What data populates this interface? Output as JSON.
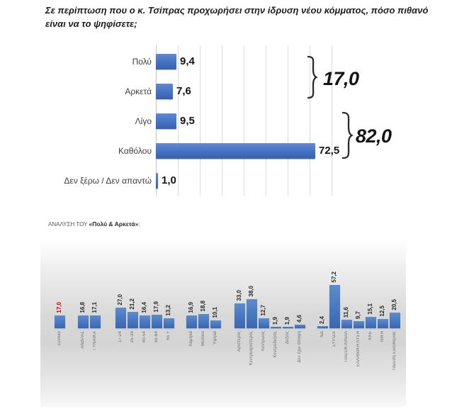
{
  "title": "Σε περίπτωση που ο κ. Τσίπρας προχωρήσει στην ίδρυση νέου κόμματος, πόσο πιθανό είναι να το ψηφίσετε;",
  "analysis_label": {
    "prefix": "ΑΝΑΛΥΣΗ ΤΟΥ ",
    "highlight": "«Πολύ & Αρκετά»",
    "suffix": ":"
  },
  "colors": {
    "bar_blue": "#4472c4",
    "highlight_red": "#c00000",
    "gridline": "#dcdcdc",
    "panel_gray": "#d9d9d9"
  },
  "chart_data": [
    {
      "type": "bar",
      "orientation": "horizontal",
      "title": "Σε περίπτωση που ο κ. Τσίπρας προχωρήσει στην ίδρυση νέου κόμματος, πόσο πιθανό είναι να το ψηφίσετε;",
      "categories": [
        "Πολύ",
        "Αρκετά",
        "Λίγο",
        "Καθόλου",
        "Δεν ξέρω / Δεν απαντώ"
      ],
      "values": [
        9.4,
        7.6,
        9.5,
        72.5,
        1.0
      ],
      "value_labels": [
        "9,4",
        "7,6",
        "9,5",
        "72,5",
        "1,0"
      ],
      "xlim": [
        0,
        80
      ],
      "gridline_interval": 10,
      "grid": true,
      "annotations": [
        {
          "type": "brace",
          "label": "17,0",
          "value": 17.0,
          "covers": [
            "Πολύ",
            "Αρκετά"
          ]
        },
        {
          "type": "brace",
          "label": "82,0",
          "value": 82.0,
          "covers": [
            "Λίγο",
            "Καθόλου"
          ]
        }
      ]
    },
    {
      "type": "bar",
      "orientation": "vertical",
      "title": "ΑΝΑΛΥΣΗ ΤΟΥ «Πολύ & Αρκετά»",
      "ylim": [
        0,
        60
      ],
      "grid": false,
      "groups": [
        {
          "name": "synolo",
          "bars": [
            {
              "label": "Σύνολο",
              "value": 17.0,
              "value_label": "17,0",
              "highlight": true
            }
          ]
        },
        {
          "name": "fylo",
          "bars": [
            {
              "label": "ΑΝΔΡΑΣ",
              "value": 16.8,
              "value_label": "16,8"
            },
            {
              "label": "ΓΥΝΑΙΚΑ",
              "value": 17.1,
              "value_label": "17,1"
            }
          ]
        },
        {
          "name": "ilikia",
          "bars": [
            {
              "label": "17-24",
              "value": 27.0,
              "value_label": "27,0"
            },
            {
              "label": "25-39",
              "value": 21.2,
              "value_label": "21,2"
            },
            {
              "label": "40-54",
              "value": 16.4,
              "value_label": "16,4"
            },
            {
              "label": "55-64",
              "value": 17.9,
              "value_label": "17,9"
            },
            {
              "label": "65 +",
              "value": 13.2,
              "value_label": "13,2"
            }
          ]
        },
        {
          "name": "eisodima",
          "bars": [
            {
              "label": "Χαμηλά",
              "value": 16.9,
              "value_label": "16,9"
            },
            {
              "label": "Μεσαία",
              "value": 18.8,
              "value_label": "18,8"
            },
            {
              "label": "Υψηλά",
              "value": 10.1,
              "value_label": "10,1"
            }
          ]
        },
        {
          "name": "ideologia",
          "bars": [
            {
              "label": "Αριστερός",
              "value": 33.0,
              "value_label": "33,0"
            },
            {
              "label": "Κεντροαριστερός",
              "value": 38.0,
              "value_label": "38,0"
            },
            {
              "label": "Κεντρώος",
              "value": 12.7,
              "value_label": "12,7"
            },
            {
              "label": "Κεντροδεξιός",
              "value": 1.9,
              "value_label": "1,9"
            },
            {
              "label": "Δεξιός",
              "value": 1.9,
              "value_label": "1,9"
            },
            {
              "label": "Δεν έχω άποψη",
              "value": 4.6,
              "value_label": "4,6"
            }
          ]
        },
        {
          "name": "psifos",
          "bars": [
            {
              "label": "ΝΔ",
              "value": 2.4,
              "value_label": "2,4"
            },
            {
              "label": "ΣΥΡΙΖΑ",
              "value": 57.2,
              "value_label": "57,2"
            },
            {
              "label": "ΠΑΣΟΚ-ΚΙΝΑΛ",
              "value": 11.6,
              "value_label": "11,6"
            },
            {
              "label": "ΕΛΛΗΝΙΚΗ ΛΥΣΗ",
              "value": 9.7,
              "value_label": "9,7"
            },
            {
              "label": "ΚΚΕ",
              "value": 15.1,
              "value_label": "15,1"
            },
            {
              "label": "ΝΙΚΗ",
              "value": 12.5,
              "value_label": "12,5"
            },
            {
              "label": "Πλεύση Ελευθερίας",
              "value": 20.5,
              "value_label": "20,5"
            }
          ]
        }
      ]
    }
  ]
}
